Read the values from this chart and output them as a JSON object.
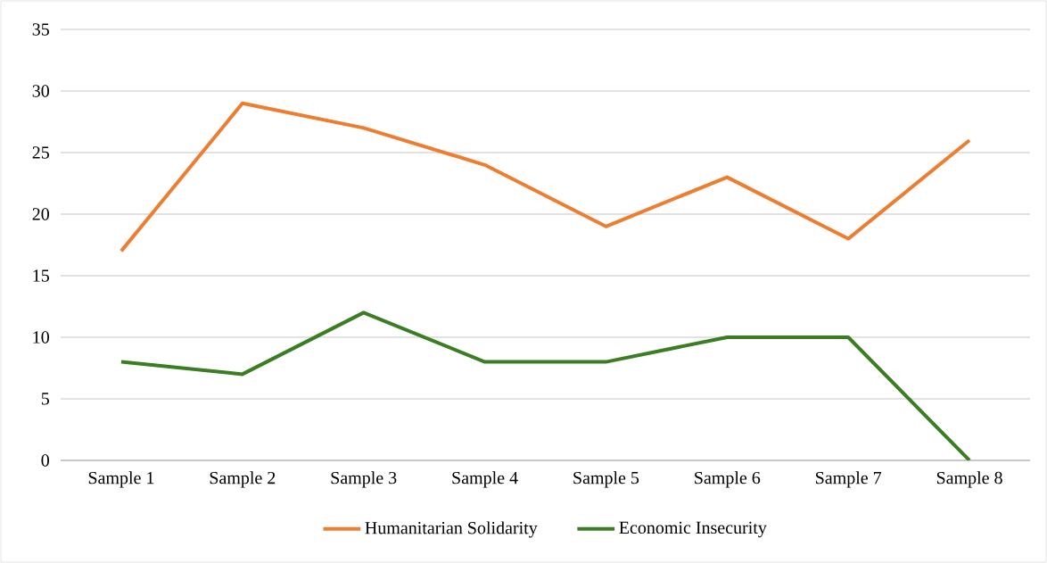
{
  "chart_data": {
    "type": "line",
    "categories": [
      "Sample 1",
      "Sample 2",
      "Sample 3",
      "Sample 4",
      "Sample 5",
      "Sample 6",
      "Sample 7",
      "Sample 8"
    ],
    "series": [
      {
        "name": "Humanitarian Solidarity",
        "color": "#ed7d31",
        "values": [
          17,
          29,
          27,
          24,
          19,
          23,
          18,
          26
        ]
      },
      {
        "name": "Economic Insecurity",
        "color": "#3b7d23",
        "values": [
          8,
          7,
          12,
          8,
          8,
          10,
          10,
          0
        ]
      }
    ],
    "ylim": [
      0,
      35
    ],
    "yticks": [
      0,
      5,
      10,
      15,
      20,
      25,
      30,
      35
    ],
    "grid": "y",
    "legend": "bottom",
    "marker": "none",
    "line_style": "solid"
  }
}
